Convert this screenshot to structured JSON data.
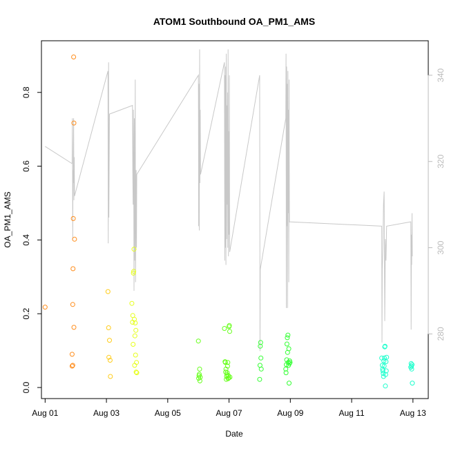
{
  "chart_data": {
    "type": "scatter",
    "title": "ATOM1 Southbound OA_PM1_AMS",
    "xlabel": "Date",
    "ylabel": "OA_PM1_AMS",
    "x_ticks": [
      {
        "day": 1,
        "label": "Aug 01"
      },
      {
        "day": 3,
        "label": "Aug 03"
      },
      {
        "day": 5,
        "label": "Aug 05"
      },
      {
        "day": 7,
        "label": "Aug 07"
      },
      {
        "day": 9,
        "label": "Aug 09"
      },
      {
        "day": 11,
        "label": "Aug 11"
      },
      {
        "day": 13,
        "label": "Aug 13"
      }
    ],
    "xlim": [
      0.88,
      13.5
    ],
    "ylim": [
      -0.03,
      0.94
    ],
    "y_ticks": [
      {
        "value": 0.0,
        "label": "0.0"
      },
      {
        "value": 0.2,
        "label": "0.2"
      },
      {
        "value": 0.4,
        "label": "0.4"
      },
      {
        "value": 0.6,
        "label": "0.6"
      },
      {
        "value": 0.8,
        "label": "0.8"
      }
    ],
    "y2lim": [
      265,
      348
    ],
    "y2_ticks": [
      {
        "value": 280,
        "label": "280"
      },
      {
        "value": 300,
        "label": "300"
      },
      {
        "value": 320,
        "label": "320"
      },
      {
        "value": 340,
        "label": "340"
      }
    ],
    "colors": {
      "axis": "#000000",
      "secondary_axis": "#bbbbbb",
      "line": "#c8c8c8"
    },
    "series": [
      {
        "color": "#ff8c1a",
        "points": [
          [
            1.0,
            0.218
          ],
          [
            1.88,
            0.058
          ],
          [
            1.88,
            0.09
          ],
          [
            1.9,
            0.06
          ],
          [
            1.9,
            0.225
          ],
          [
            1.91,
            0.322
          ],
          [
            1.92,
            0.458
          ],
          [
            1.93,
            0.896
          ],
          [
            1.94,
            0.163
          ],
          [
            1.94,
            0.717
          ],
          [
            1.96,
            0.402
          ]
        ]
      },
      {
        "color": "#ffcc1a",
        "points": [
          [
            3.05,
            0.26
          ],
          [
            3.07,
            0.162
          ],
          [
            3.08,
            0.082
          ],
          [
            3.1,
            0.128
          ],
          [
            3.12,
            0.074
          ],
          [
            3.13,
            0.03
          ]
        ]
      },
      {
        "color": "#e6ff1a",
        "points": [
          [
            3.83,
            0.228
          ],
          [
            3.85,
            0.177
          ],
          [
            3.86,
            0.195
          ],
          [
            3.87,
            0.117
          ],
          [
            3.88,
            0.31
          ],
          [
            3.89,
            0.315
          ],
          [
            3.9,
            0.375
          ],
          [
            3.91,
            0.185
          ],
          [
            3.92,
            0.06
          ],
          [
            3.93,
            0.14
          ],
          [
            3.94,
            0.175
          ],
          [
            3.95,
            0.088
          ],
          [
            3.96,
            0.155
          ],
          [
            3.97,
            0.042
          ],
          [
            3.98,
            0.068
          ],
          [
            3.99,
            0.04
          ]
        ]
      },
      {
        "color": "#66ff1a",
        "points": [
          [
            6.0,
            0.126
          ],
          [
            6.01,
            0.025
          ],
          [
            6.02,
            0.032
          ],
          [
            6.03,
            0.036
          ],
          [
            6.04,
            0.05
          ],
          [
            6.05,
            0.018
          ],
          [
            6.06,
            0.028
          ],
          [
            6.85,
            0.16
          ],
          [
            6.87,
            0.07
          ],
          [
            6.88,
            0.068
          ],
          [
            6.89,
            0.042
          ],
          [
            6.9,
            0.05
          ],
          [
            6.91,
            0.022
          ],
          [
            6.92,
            0.03
          ],
          [
            6.93,
            0.035
          ],
          [
            6.94,
            0.04
          ],
          [
            6.95,
            0.058
          ],
          [
            6.96,
            0.068
          ],
          [
            6.97,
            0.024
          ],
          [
            6.98,
            0.032
          ],
          [
            6.99,
            0.026
          ],
          [
            7.0,
            0.165
          ],
          [
            7.01,
            0.168
          ],
          [
            7.02,
            0.152
          ],
          [
            7.03,
            0.028
          ]
        ]
      },
      {
        "color": "#33ff33",
        "points": [
          [
            8.0,
            0.022
          ],
          [
            8.01,
            0.06
          ],
          [
            8.02,
            0.112
          ],
          [
            8.03,
            0.122
          ],
          [
            8.04,
            0.08
          ],
          [
            8.05,
            0.05
          ],
          [
            8.85,
            0.05
          ],
          [
            8.86,
            0.04
          ],
          [
            8.87,
            0.062
          ],
          [
            8.88,
            0.075
          ],
          [
            8.89,
            0.118
          ],
          [
            8.9,
            0.135
          ],
          [
            8.91,
            0.095
          ],
          [
            8.92,
            0.142
          ],
          [
            8.93,
            0.068
          ],
          [
            8.94,
            0.06
          ],
          [
            8.95,
            0.105
          ],
          [
            8.96,
            0.012
          ],
          [
            8.97,
            0.065
          ],
          [
            8.98,
            0.072
          ],
          [
            8.99,
            0.068
          ]
        ]
      },
      {
        "color": "#1affcc",
        "points": [
          [
            11.98,
            0.08
          ],
          [
            12.0,
            0.06
          ],
          [
            12.01,
            0.05
          ],
          [
            12.02,
            0.045
          ],
          [
            12.03,
            0.038
          ],
          [
            12.04,
            0.03
          ],
          [
            12.05,
            0.072
          ],
          [
            12.06,
            0.058
          ],
          [
            12.07,
            0.08
          ],
          [
            12.08,
            0.11
          ],
          [
            12.09,
            0.112
          ],
          [
            12.1,
            0.004
          ],
          [
            12.11,
            0.035
          ],
          [
            12.12,
            0.07
          ],
          [
            12.13,
            0.045
          ],
          [
            12.14,
            0.082
          ],
          [
            12.93,
            0.055
          ],
          [
            12.94,
            0.065
          ],
          [
            12.95,
            0.058
          ],
          [
            12.96,
            0.05
          ],
          [
            12.97,
            0.062
          ],
          [
            12.98,
            0.012
          ]
        ]
      }
    ],
    "line_series": [
      {
        "points": [
          [
            1.0,
            323.5
          ],
          [
            1.88,
            319.5
          ],
          [
            1.89,
            330
          ],
          [
            1.9,
            302
          ],
          [
            1.91,
            318
          ],
          [
            1.92,
            315
          ],
          [
            1.93,
            330
          ],
          [
            1.94,
            311
          ],
          [
            1.95,
            321
          ],
          [
            1.96,
            312
          ],
          [
            3.05,
            341
          ],
          [
            3.06,
            301
          ],
          [
            3.07,
            343
          ],
          [
            3.08,
            307
          ],
          [
            3.1,
            331
          ],
          [
            3.85,
            333
          ],
          [
            3.86,
            318
          ],
          [
            3.87,
            310
          ],
          [
            3.88,
            332
          ],
          [
            3.89,
            315
          ],
          [
            3.9,
            290
          ],
          [
            3.91,
            330
          ],
          [
            3.92,
            297
          ],
          [
            3.93,
            310
          ],
          [
            3.94,
            339
          ],
          [
            3.95,
            292
          ],
          [
            3.96,
            308
          ],
          [
            3.97,
            318
          ],
          [
            3.98,
            300
          ],
          [
            3.99,
            317
          ],
          [
            6.0,
            340
          ],
          [
            6.01,
            305
          ],
          [
            6.02,
            338
          ],
          [
            6.03,
            304
          ],
          [
            6.04,
            346
          ],
          [
            6.05,
            315
          ],
          [
            6.06,
            332
          ],
          [
            6.07,
            317
          ],
          [
            6.85,
            343
          ],
          [
            6.86,
            297
          ],
          [
            6.87,
            340
          ],
          [
            6.88,
            300
          ],
          [
            6.89,
            342
          ],
          [
            6.9,
            296
          ],
          [
            6.91,
            345
          ],
          [
            6.92,
            302
          ],
          [
            6.93,
            333
          ],
          [
            6.94,
            310
          ],
          [
            6.95,
            336
          ],
          [
            6.96,
            300
          ],
          [
            6.97,
            346
          ],
          [
            6.98,
            298
          ],
          [
            6.99,
            327
          ],
          [
            7.0,
            303
          ],
          [
            7.01,
            340
          ],
          [
            7.02,
            299
          ],
          [
            8.0,
            340
          ],
          [
            8.01,
            276
          ],
          [
            8.02,
            295
          ],
          [
            8.85,
            330
          ],
          [
            8.86,
            345
          ],
          [
            8.87,
            286
          ],
          [
            8.88,
            342
          ],
          [
            8.89,
            305
          ],
          [
            8.9,
            338
          ],
          [
            8.91,
            286
          ],
          [
            8.92,
            341
          ],
          [
            8.93,
            308
          ],
          [
            8.94,
            332
          ],
          [
            8.95,
            292
          ],
          [
            8.96,
            339
          ],
          [
            8.97,
            306
          ],
          [
            11.98,
            305
          ],
          [
            11.99,
            278
          ],
          [
            12.0,
            295
          ],
          [
            12.02,
            300
          ],
          [
            12.04,
            310
          ],
          [
            12.06,
            313
          ],
          [
            12.08,
            283
          ],
          [
            12.1,
            302
          ],
          [
            12.12,
            297
          ],
          [
            12.14,
            305
          ],
          [
            12.93,
            306
          ],
          [
            12.94,
            281
          ],
          [
            12.95,
            303
          ],
          [
            12.96,
            296
          ],
          [
            12.97,
            308
          ],
          [
            12.98,
            298
          ]
        ]
      }
    ]
  }
}
